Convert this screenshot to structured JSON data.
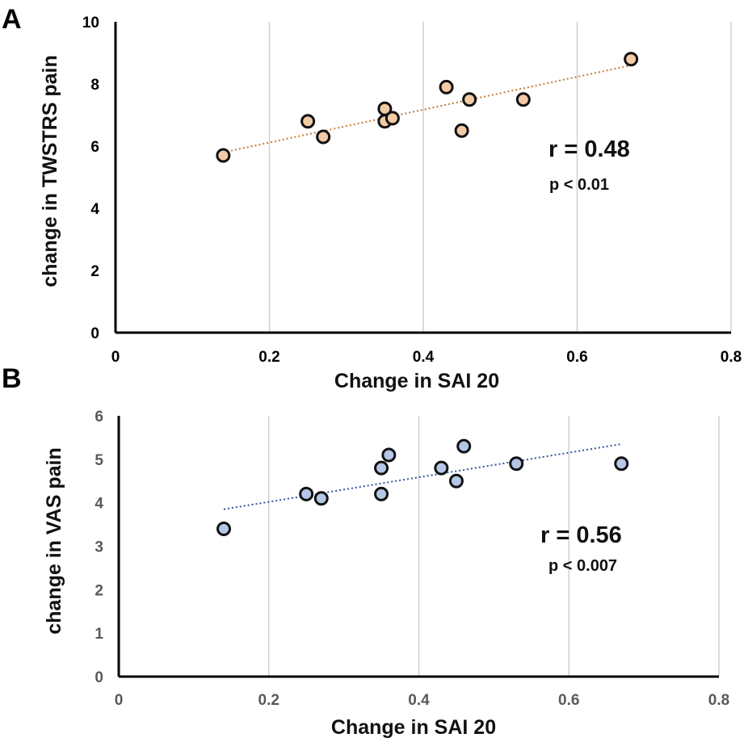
{
  "chart_data": [
    {
      "type": "scatter",
      "panel_label": "A",
      "xlabel": "Change in SAI 20",
      "ylabel": "change in TWSTRS pain",
      "xlim": [
        0,
        0.8
      ],
      "ylim": [
        0,
        10
      ],
      "x_ticks": [
        "0",
        "0.2",
        "0.4",
        "0.6",
        "0.8"
      ],
      "y_ticks": [
        "0",
        "2",
        "4",
        "6",
        "8",
        "10"
      ],
      "grid": "vertical",
      "tick_color": "#000000",
      "point_color": "#f2cba6",
      "trend_color": "#c87a32",
      "points": [
        {
          "x": 0.14,
          "y": 5.7
        },
        {
          "x": 0.25,
          "y": 6.8
        },
        {
          "x": 0.27,
          "y": 6.3
        },
        {
          "x": 0.35,
          "y": 7.2
        },
        {
          "x": 0.35,
          "y": 6.8
        },
        {
          "x": 0.36,
          "y": 6.9
        },
        {
          "x": 0.43,
          "y": 7.9
        },
        {
          "x": 0.45,
          "y": 6.5
        },
        {
          "x": 0.46,
          "y": 7.5
        },
        {
          "x": 0.53,
          "y": 7.5
        },
        {
          "x": 0.67,
          "y": 8.8
        }
      ],
      "trendline": {
        "x": [
          0.14,
          0.67
        ],
        "y": [
          5.8,
          8.6
        ]
      },
      "annotation": {
        "r": "r = 0.48",
        "p": "p < 0.01"
      }
    },
    {
      "type": "scatter",
      "panel_label": "B",
      "xlabel": "Change in SAI 20",
      "ylabel": "change in VAS pain",
      "xlim": [
        0,
        0.8
      ],
      "ylim": [
        0,
        6
      ],
      "x_ticks": [
        "0",
        "0.2",
        "0.4",
        "0.6",
        "0.8"
      ],
      "y_ticks": [
        "0",
        "1",
        "2",
        "3",
        "4",
        "5",
        "6"
      ],
      "grid": "vertical",
      "tick_color": "#595959",
      "point_color": "#b4c7e7",
      "trend_color": "#2f55a0",
      "points": [
        {
          "x": 0.14,
          "y": 3.4
        },
        {
          "x": 0.25,
          "y": 4.2
        },
        {
          "x": 0.27,
          "y": 4.1
        },
        {
          "x": 0.35,
          "y": 4.8
        },
        {
          "x": 0.35,
          "y": 4.2
        },
        {
          "x": 0.36,
          "y": 5.1
        },
        {
          "x": 0.43,
          "y": 4.8
        },
        {
          "x": 0.45,
          "y": 4.5
        },
        {
          "x": 0.46,
          "y": 5.3
        },
        {
          "x": 0.53,
          "y": 4.9
        },
        {
          "x": 0.67,
          "y": 4.9
        }
      ],
      "trendline": {
        "x": [
          0.14,
          0.67
        ],
        "y": [
          3.85,
          5.35
        ]
      },
      "annotation": {
        "r": "r = 0.56",
        "p": "p < 0.007"
      }
    }
  ]
}
